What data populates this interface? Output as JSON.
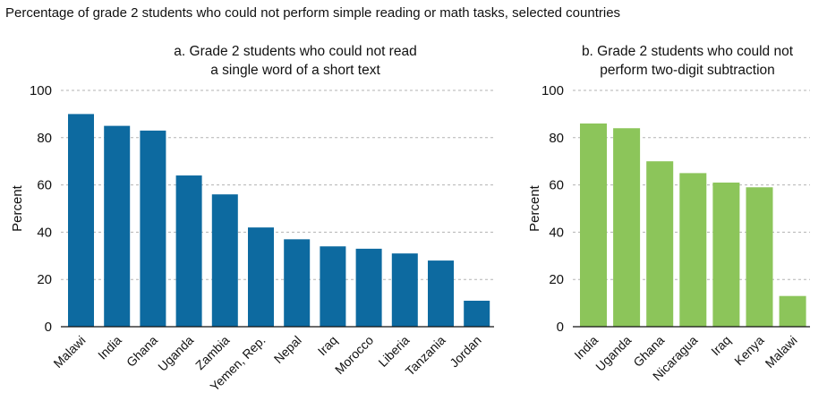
{
  "figure_title": "Percentage of grade 2 students who could not perform simple reading or math tasks, selected countries",
  "colors": {
    "panel_a_bar": "#0d6aa0",
    "panel_b_bar": "#8cc55a",
    "grid": "#b3b3b3",
    "axis": "#111111"
  },
  "chart_data": [
    {
      "type": "bar",
      "title_lines": [
        "a. Grade 2 students who could not read",
        "a single word of a short text"
      ],
      "xlabel": "",
      "ylabel": "Percent",
      "ylim": [
        0,
        100
      ],
      "yticks": [
        0,
        20,
        40,
        60,
        80,
        100
      ],
      "grid": true,
      "categories": [
        "Malawi",
        "India",
        "Ghana",
        "Uganda",
        "Zambia",
        "Yemen, Rep.",
        "Nepal",
        "Iraq",
        "Morocco",
        "Liberia",
        "Tanzania",
        "Jordan"
      ],
      "values": [
        90,
        85,
        83,
        64,
        56,
        42,
        37,
        34,
        33,
        31,
        28,
        11
      ]
    },
    {
      "type": "bar",
      "title_lines": [
        "b. Grade 2 students who could not",
        "perform two-digit subtraction"
      ],
      "xlabel": "",
      "ylabel": "Percent",
      "ylim": [
        0,
        100
      ],
      "yticks": [
        0,
        20,
        40,
        60,
        80,
        100
      ],
      "grid": true,
      "categories": [
        "India",
        "Uganda",
        "Ghana",
        "Nicaragua",
        "Iraq",
        "Kenya",
        "Malawi"
      ],
      "values": [
        86,
        84,
        70,
        65,
        61,
        59,
        13
      ]
    }
  ]
}
